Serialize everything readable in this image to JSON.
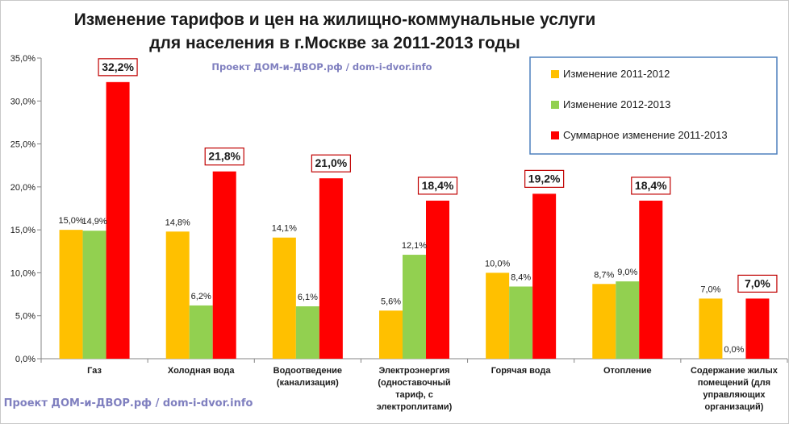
{
  "chart_data": {
    "type": "bar",
    "title_line1": "Изменение тарифов и цен на жилищно-коммунальные услуги",
    "title_line2": "для населения в г.Москве за 2011-2013 годы",
    "watermark_top": "Проект ДОМ-и-ДВОР.рф / dom-i-dvor.info",
    "watermark_bottom": "Проект ДОМ-и-ДВОР.рф / dom-i-dvor.info",
    "categories": [
      [
        "Газ"
      ],
      [
        "Холодная вода"
      ],
      [
        "Водоотведение",
        "(канализация)"
      ],
      [
        "Электроэнергия",
        "(одноставочный",
        "тариф, с",
        "электроплитами)"
      ],
      [
        "Горячая вода"
      ],
      [
        "Отопление"
      ],
      [
        "Содержание жилых",
        "помещений (для",
        "управляющих",
        "организаций)"
      ]
    ],
    "series": [
      {
        "name": "Изменение 2011-2012",
        "color": "#ffc000",
        "values": [
          15.0,
          14.8,
          14.1,
          5.6,
          10.0,
          8.7,
          7.0
        ],
        "labels": [
          "15,0%",
          "14,8%",
          "14,1%",
          "5,6%",
          "10,0%",
          "8,7%",
          "7,0%"
        ]
      },
      {
        "name": "Изменение 2012-2013",
        "color": "#92d050",
        "values": [
          14.9,
          6.2,
          6.1,
          12.1,
          8.4,
          9.0,
          0.0
        ],
        "labels": [
          "14,9%",
          "6,2%",
          "6,1%",
          "12,1%",
          "8,4%",
          "9,0%",
          "0,0%"
        ]
      },
      {
        "name": "Суммарное изменение 2011-2013",
        "color": "#ff0000",
        "values": [
          32.2,
          21.8,
          21.0,
          18.4,
          19.2,
          18.4,
          7.0
        ],
        "labels": [
          "32,2%",
          "21,8%",
          "21,0%",
          "18,4%",
          "19,2%",
          "18,4%",
          "7,0%"
        ]
      }
    ],
    "yticks": [
      "0,0%",
      "5,0%",
      "10,0%",
      "15,0%",
      "20,0%",
      "25,0%",
      "30,0%",
      "35,0%"
    ],
    "ylim": [
      0,
      35
    ],
    "grid": false,
    "legend": "top-right"
  }
}
